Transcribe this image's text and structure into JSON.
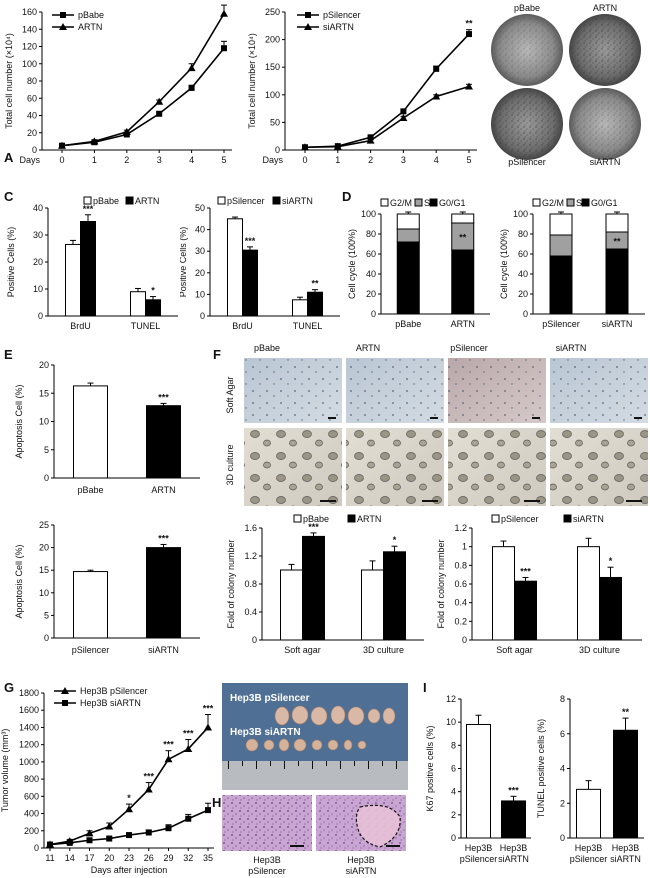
{
  "panels": {
    "A": "A",
    "B": "B",
    "C": "C",
    "D": "D",
    "E": "E",
    "F": "F",
    "G": "G",
    "H": "H",
    "I": "I"
  },
  "b_labels": [
    "pBabe",
    "ARTN",
    "pSilencer",
    "siARTN"
  ],
  "f_labels": {
    "columns": [
      "pBabe",
      "ARTN",
      "pSilencer",
      "siARTN"
    ],
    "rows": [
      "Soft Agar",
      "3D culture"
    ]
  },
  "g_photo": {
    "top": "Hep3B pSilencer",
    "bottom": "Hep3B siARTN"
  },
  "h_labels": [
    [
      "Hep3B",
      "pSilencer"
    ],
    [
      "Hep3B",
      "siARTN"
    ]
  ],
  "colors": {
    "white_bar": "#ffffff",
    "black_bar": "#000000",
    "grey": "#a0a0a0"
  },
  "chart_data": [
    {
      "id": "A1",
      "type": "line",
      "ylabel": "Total cell number (×10⁴)",
      "xlabel": "Days",
      "x": [
        0,
        1,
        2,
        3,
        4,
        5
      ],
      "ylim": [
        0,
        160
      ],
      "yticks": [
        0,
        20,
        40,
        60,
        80,
        100,
        120,
        140,
        160
      ],
      "series": [
        {
          "name": "pBabe",
          "marker": "square",
          "values": [
            5,
            9,
            18,
            42,
            72,
            118
          ],
          "err": [
            1,
            1,
            2,
            2,
            3,
            8
          ]
        },
        {
          "name": "ARTN",
          "marker": "triangle",
          "values": [
            5,
            10,
            21,
            56,
            95,
            158
          ],
          "err": [
            1,
            1,
            2,
            2,
            5,
            10
          ]
        }
      ],
      "annotations": [
        {
          "x": 5,
          "text": "*"
        }
      ]
    },
    {
      "id": "A2",
      "type": "line",
      "ylabel": "Total cell number (×10⁴)",
      "xlabel": "Days",
      "x": [
        0,
        1,
        2,
        3,
        4,
        5
      ],
      "ylim": [
        0,
        250
      ],
      "yticks": [
        0,
        50,
        100,
        150,
        200,
        250
      ],
      "series": [
        {
          "name": "pSilencer",
          "marker": "square",
          "values": [
            5,
            7,
            23,
            70,
            147,
            210
          ],
          "err": [
            1,
            1,
            2,
            3,
            5,
            8
          ]
        },
        {
          "name": "siARTN",
          "marker": "triangle",
          "values": [
            5,
            6,
            17,
            58,
            97,
            115
          ],
          "err": [
            1,
            1,
            2,
            3,
            3,
            4
          ]
        }
      ],
      "annotations": [
        {
          "x": 5,
          "text": "**"
        }
      ]
    },
    {
      "id": "C1",
      "type": "bar",
      "ylabel": "Positive Cells (%)",
      "categories": [
        "BrdU",
        "TUNEL"
      ],
      "ylim": [
        0,
        40
      ],
      "yticks": [
        0,
        10,
        20,
        30,
        40
      ],
      "series": [
        {
          "name": "pBabe",
          "values": [
            26.5,
            9
          ],
          "err": [
            1.5,
            1.2
          ]
        },
        {
          "name": "ARTN",
          "values": [
            35,
            6
          ],
          "err": [
            2.5,
            1.2
          ]
        }
      ],
      "annotations": [
        {
          "category": "BrdU",
          "text": "***"
        },
        {
          "category": "TUNEL",
          "text": "*"
        }
      ]
    },
    {
      "id": "C2",
      "type": "bar",
      "ylabel": "Positive Cells (%)",
      "categories": [
        "BrdU",
        "TUNEL"
      ],
      "ylim": [
        0,
        50
      ],
      "yticks": [
        0,
        10,
        20,
        30,
        40,
        50
      ],
      "series": [
        {
          "name": "pSilencer",
          "values": [
            45,
            7.5
          ],
          "err": [
            0.8,
            1.2
          ]
        },
        {
          "name": "siARTN",
          "values": [
            30.5,
            11
          ],
          "err": [
            1.5,
            1.2
          ]
        }
      ],
      "annotations": [
        {
          "category": "BrdU",
          "text": "***"
        },
        {
          "category": "TUNEL",
          "text": "**"
        }
      ]
    },
    {
      "id": "D1",
      "type": "bar",
      "stacked": true,
      "ylabel": "Cell cycle (100%)",
      "categories": [
        "pBabe",
        "ARTN"
      ],
      "ylim": [
        0,
        100
      ],
      "yticks": [
        0,
        20,
        40,
        60,
        80,
        100
      ],
      "series": [
        {
          "name": "G0/G1",
          "values": [
            72,
            64
          ]
        },
        {
          "name": "S",
          "values": [
            13,
            27
          ]
        },
        {
          "name": "G2/M",
          "values": [
            15,
            9
          ]
        }
      ],
      "annotations": [
        {
          "category": "ARTN",
          "text": "**"
        }
      ]
    },
    {
      "id": "D2",
      "type": "bar",
      "stacked": true,
      "ylabel": "Cell cycle (100%)",
      "categories": [
        "pSilencer",
        "siARTN"
      ],
      "ylim": [
        0,
        100
      ],
      "yticks": [
        0,
        20,
        40,
        60,
        80,
        100
      ],
      "series": [
        {
          "name": "G0/G1",
          "values": [
            58,
            65
          ]
        },
        {
          "name": "S",
          "values": [
            21,
            17
          ]
        },
        {
          "name": "G2/M",
          "values": [
            21,
            18
          ]
        }
      ],
      "annotations": [
        {
          "category": "siARTN",
          "text": "**"
        }
      ]
    },
    {
      "id": "E1",
      "type": "bar",
      "ylabel": "Apoptosis Cell (%)",
      "categories": [
        "pBabe",
        "ARTN"
      ],
      "ylim": [
        0,
        20
      ],
      "yticks": [
        0,
        5,
        10,
        15,
        20
      ],
      "values": [
        16.3,
        12.8
      ],
      "err": [
        0.5,
        0.4
      ],
      "annotations": [
        {
          "category": "ARTN",
          "text": "***"
        }
      ]
    },
    {
      "id": "E2",
      "type": "bar",
      "ylabel": "Apoptosis Cell (%)",
      "categories": [
        "pSilencer",
        "siARTN"
      ],
      "ylim": [
        0,
        25
      ],
      "yticks": [
        0,
        5,
        10,
        15,
        20,
        25
      ],
      "values": [
        14.7,
        20
      ],
      "err": [
        0.3,
        0.7
      ],
      "annotations": [
        {
          "category": "siARTN",
          "text": "***"
        }
      ]
    },
    {
      "id": "F1",
      "type": "bar",
      "ylabel": "Fold of colony number",
      "categories": [
        "Soft agar",
        "3D culture"
      ],
      "ylim": [
        0,
        1.6
      ],
      "yticks": [
        "0",
        "0.4",
        "0.8",
        "1.2",
        "1.6"
      ],
      "series": [
        {
          "name": "pBabe",
          "values": [
            1.0,
            1.0
          ],
          "err": [
            0.08,
            0.13
          ]
        },
        {
          "name": "ARTN",
          "values": [
            1.48,
            1.26
          ],
          "err": [
            0.05,
            0.08
          ]
        }
      ],
      "annotations": [
        {
          "category": "Soft agar",
          "text": "***"
        },
        {
          "category": "3D culture",
          "text": "*"
        }
      ]
    },
    {
      "id": "F2",
      "type": "bar",
      "ylabel": "Fold of colony number",
      "categories": [
        "Soft agar",
        "3D culture"
      ],
      "ylim": [
        0,
        1.2
      ],
      "yticks": [
        "0",
        "0.2",
        "0.4",
        "0.6",
        "0.8",
        "1",
        "1.2"
      ],
      "series": [
        {
          "name": "pSilencer",
          "values": [
            1.0,
            1.0
          ],
          "err": [
            0.06,
            0.09
          ]
        },
        {
          "name": "siARTN",
          "values": [
            0.63,
            0.67
          ],
          "err": [
            0.04,
            0.11
          ]
        }
      ],
      "annotations": [
        {
          "category": "Soft agar",
          "text": "***"
        },
        {
          "category": "3D culture",
          "text": "*"
        }
      ]
    },
    {
      "id": "G",
      "type": "line",
      "ylabel": "Tumor volume (mm³)",
      "xlabel": "Days after injection",
      "x": [
        11,
        14,
        17,
        20,
        23,
        26,
        29,
        32,
        35
      ],
      "ylim": [
        0,
        1800
      ],
      "yticks": [
        0,
        200,
        400,
        600,
        800,
        1000,
        1200,
        1400,
        1600,
        1800
      ],
      "series": [
        {
          "name": "Hep3B pSilencer",
          "marker": "triangle",
          "values": [
            40,
            80,
            170,
            250,
            450,
            680,
            1030,
            1150,
            1400
          ],
          "err": [
            10,
            20,
            30,
            40,
            60,
            80,
            100,
            110,
            150
          ]
        },
        {
          "name": "Hep3B siARTN",
          "marker": "square",
          "values": [
            40,
            60,
            90,
            110,
            150,
            180,
            230,
            340,
            440
          ],
          "err": [
            10,
            15,
            20,
            20,
            25,
            30,
            40,
            50,
            80
          ]
        }
      ],
      "annotations": [
        {
          "x": 23,
          "text": "*"
        },
        {
          "x": 26,
          "text": "***"
        },
        {
          "x": 29,
          "text": "***"
        },
        {
          "x": 32,
          "text": "***"
        },
        {
          "x": 35,
          "text": "***"
        }
      ]
    },
    {
      "id": "I1",
      "type": "bar",
      "ylabel": "K67 positive cells (%)",
      "categories": [
        [
          "Hep3B",
          "pSilencer"
        ],
        [
          "Hep3B",
          "siARTN"
        ]
      ],
      "ylim": [
        0,
        12
      ],
      "yticks": [
        0,
        2,
        4,
        6,
        8,
        10,
        12
      ],
      "values": [
        9.8,
        3.2
      ],
      "err": [
        0.8,
        0.4
      ],
      "annotations": [
        {
          "index": 1,
          "text": "***"
        }
      ]
    },
    {
      "id": "I2",
      "type": "bar",
      "ylabel": "TUNEL positive cells (%)",
      "categories": [
        [
          "Hep3B",
          "pSilencer"
        ],
        [
          "Hep3B",
          "siARTN"
        ]
      ],
      "ylim": [
        0,
        8
      ],
      "yticks": [
        0,
        2,
        4,
        6,
        8
      ],
      "values": [
        2.8,
        6.2
      ],
      "err": [
        0.5,
        0.7
      ],
      "annotations": [
        {
          "index": 1,
          "text": "**"
        }
      ]
    }
  ]
}
